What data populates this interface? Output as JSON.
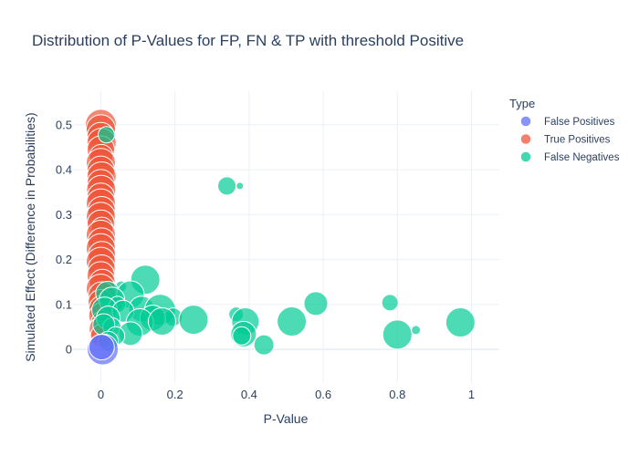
{
  "chart_data": {
    "type": "scatter",
    "title": "Distribution of P-Values for FP, FN & TP with threshold Positive",
    "xlabel": "P-Value",
    "ylabel": "Simulated Effect (Difference in Probabilities)",
    "xlim": [
      -0.075,
      1.075
    ],
    "ylim": [
      -0.075,
      0.575
    ],
    "xticks": [
      0,
      0.2,
      0.4,
      0.6,
      0.8,
      1
    ],
    "xtick_labels": [
      "0",
      "0.2",
      "0.4",
      "0.6",
      "0.8",
      "1"
    ],
    "yticks": [
      0,
      0.1,
      0.2,
      0.3,
      0.4,
      0.5
    ],
    "ytick_labels": [
      "0",
      "0.1",
      "0.2",
      "0.3",
      "0.4",
      "0.5"
    ],
    "grid": true,
    "legend": {
      "title": "Type",
      "position": "right"
    },
    "series": [
      {
        "name": "False Positives",
        "color": "#636efa",
        "points": [
          {
            "x": 0.005,
            "y": 0.0,
            "size": 17
          },
          {
            "x": 0.002,
            "y": 0.005,
            "size": 14
          }
        ]
      },
      {
        "name": "True Positives",
        "color": "#ef553b",
        "points": [
          {
            "x": 0.0,
            "y": 0.5,
            "size": 17
          },
          {
            "x": 0.0,
            "y": 0.49,
            "size": 16
          },
          {
            "x": 0.0,
            "y": 0.475,
            "size": 15
          },
          {
            "x": 0.002,
            "y": 0.46,
            "size": 16
          },
          {
            "x": 0.0,
            "y": 0.445,
            "size": 15
          },
          {
            "x": 0.001,
            "y": 0.43,
            "size": 13
          },
          {
            "x": 0.0,
            "y": 0.415,
            "size": 16
          },
          {
            "x": 0.0,
            "y": 0.4,
            "size": 15
          },
          {
            "x": 0.002,
            "y": 0.385,
            "size": 16
          },
          {
            "x": 0.0,
            "y": 0.37,
            "size": 15
          },
          {
            "x": 0.001,
            "y": 0.355,
            "size": 16
          },
          {
            "x": 0.0,
            "y": 0.34,
            "size": 15
          },
          {
            "x": 0.0,
            "y": 0.325,
            "size": 16
          },
          {
            "x": 0.002,
            "y": 0.31,
            "size": 15
          },
          {
            "x": 0.0,
            "y": 0.295,
            "size": 16
          },
          {
            "x": 0.0,
            "y": 0.28,
            "size": 15
          },
          {
            "x": 0.003,
            "y": 0.27,
            "size": 12
          },
          {
            "x": 0.0,
            "y": 0.255,
            "size": 16
          },
          {
            "x": 0.002,
            "y": 0.24,
            "size": 15
          },
          {
            "x": 0.0,
            "y": 0.225,
            "size": 16
          },
          {
            "x": 0.003,
            "y": 0.21,
            "size": 15
          },
          {
            "x": 0.0,
            "y": 0.195,
            "size": 16
          },
          {
            "x": 0.002,
            "y": 0.18,
            "size": 15
          },
          {
            "x": 0.0,
            "y": 0.165,
            "size": 15
          },
          {
            "x": 0.004,
            "y": 0.15,
            "size": 14
          },
          {
            "x": 0.0,
            "y": 0.135,
            "size": 16
          },
          {
            "x": 0.003,
            "y": 0.12,
            "size": 15
          },
          {
            "x": 0.0,
            "y": 0.105,
            "size": 14
          },
          {
            "x": 0.005,
            "y": 0.09,
            "size": 15
          },
          {
            "x": 0.002,
            "y": 0.075,
            "size": 14
          },
          {
            "x": 0.006,
            "y": 0.06,
            "size": 13
          },
          {
            "x": 0.003,
            "y": 0.045,
            "size": 14
          },
          {
            "x": 0.004,
            "y": 0.03,
            "size": 13
          }
        ]
      },
      {
        "name": "False Negatives",
        "color": "#00cc96",
        "points": [
          {
            "x": 0.015,
            "y": 0.478,
            "size": 9
          },
          {
            "x": 0.34,
            "y": 0.364,
            "size": 10
          },
          {
            "x": 0.375,
            "y": 0.364,
            "size": 4
          },
          {
            "x": 0.12,
            "y": 0.155,
            "size": 16
          },
          {
            "x": 0.055,
            "y": 0.14,
            "size": 6
          },
          {
            "x": 0.018,
            "y": 0.125,
            "size": 13
          },
          {
            "x": 0.08,
            "y": 0.122,
            "size": 15
          },
          {
            "x": 0.03,
            "y": 0.11,
            "size": 14
          },
          {
            "x": 0.045,
            "y": 0.1,
            "size": 9
          },
          {
            "x": 0.11,
            "y": 0.09,
            "size": 14
          },
          {
            "x": 0.01,
            "y": 0.088,
            "size": 14
          },
          {
            "x": 0.16,
            "y": 0.088,
            "size": 17
          },
          {
            "x": 0.06,
            "y": 0.085,
            "size": 12
          },
          {
            "x": 0.195,
            "y": 0.072,
            "size": 10
          },
          {
            "x": 0.25,
            "y": 0.066,
            "size": 16
          },
          {
            "x": 0.14,
            "y": 0.07,
            "size": 14
          },
          {
            "x": 0.02,
            "y": 0.07,
            "size": 13
          },
          {
            "x": 0.105,
            "y": 0.06,
            "size": 15
          },
          {
            "x": 0.165,
            "y": 0.062,
            "size": 15
          },
          {
            "x": 0.03,
            "y": 0.05,
            "size": 10
          },
          {
            "x": 0.008,
            "y": 0.055,
            "size": 12
          },
          {
            "x": 0.08,
            "y": 0.035,
            "size": 13
          },
          {
            "x": 0.04,
            "y": 0.03,
            "size": 10
          },
          {
            "x": 0.02,
            "y": 0.018,
            "size": 11
          },
          {
            "x": 0.365,
            "y": 0.078,
            "size": 8
          },
          {
            "x": 0.39,
            "y": 0.062,
            "size": 15
          },
          {
            "x": 0.385,
            "y": 0.034,
            "size": 14
          },
          {
            "x": 0.38,
            "y": 0.03,
            "size": 10
          },
          {
            "x": 0.44,
            "y": 0.01,
            "size": 11
          },
          {
            "x": 0.515,
            "y": 0.062,
            "size": 16
          },
          {
            "x": 0.58,
            "y": 0.102,
            "size": 13
          },
          {
            "x": 0.78,
            "y": 0.104,
            "size": 9
          },
          {
            "x": 0.8,
            "y": 0.033,
            "size": 16
          },
          {
            "x": 0.85,
            "y": 0.043,
            "size": 5
          },
          {
            "x": 0.97,
            "y": 0.06,
            "size": 16
          }
        ]
      }
    ]
  }
}
